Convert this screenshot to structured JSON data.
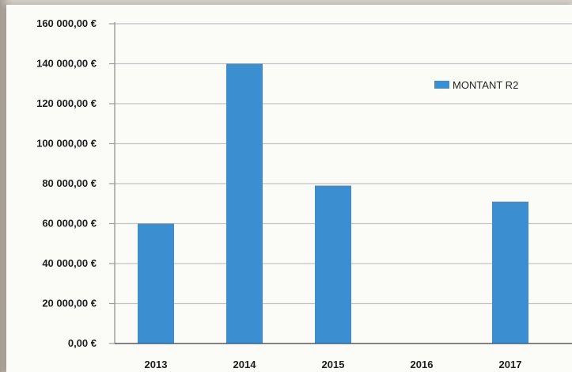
{
  "chart_data": {
    "type": "bar",
    "categories": [
      "2013",
      "2014",
      "2015",
      "2016",
      "2017"
    ],
    "series": [
      {
        "name": "MONTANT R2",
        "values": [
          60000,
          140000,
          79000,
          0,
          71000
        ]
      }
    ],
    "ylim": [
      0,
      160000
    ],
    "y_ticks": [
      0,
      20000,
      40000,
      60000,
      80000,
      100000,
      120000,
      140000,
      160000
    ],
    "y_tick_labels": [
      "0,00 €",
      "20 000,00 €",
      "40 000,00 €",
      "60 000,00 €",
      "80 000,00 €",
      "100 000,00 €",
      "120 000,00 €",
      "140 000,00 €",
      "160 000,00 €"
    ],
    "grid": true,
    "legend": "top-right",
    "colors": {
      "bar": "#3b8fd1",
      "grid": "#c4c4c4",
      "axis": "#9a9a9a"
    }
  }
}
